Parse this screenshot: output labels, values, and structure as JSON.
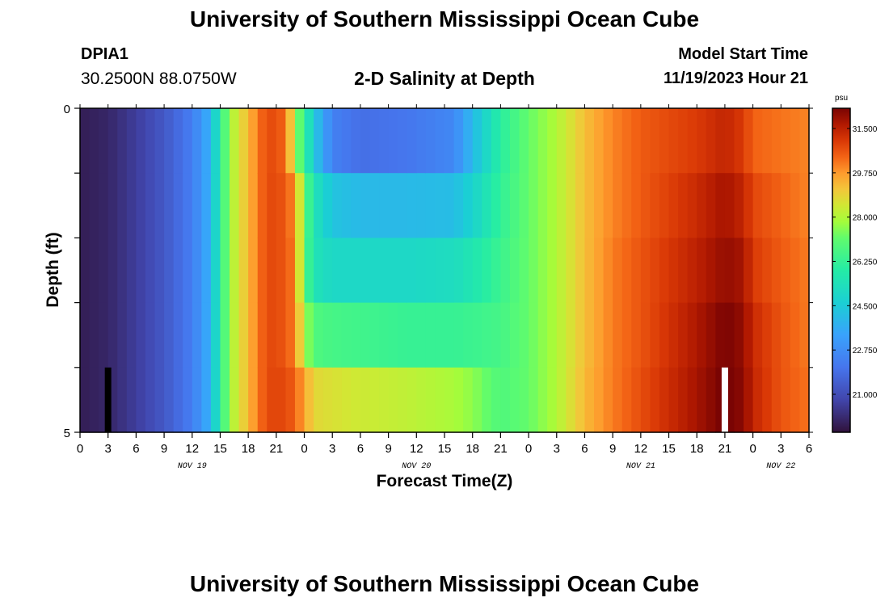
{
  "header": {
    "title": "University of Southern Mississippi Ocean Cube",
    "station": "DPIA1",
    "coords": "30.2500N  88.0750W",
    "subtitle": "2-D Salinity at Depth",
    "start_label": "Model Start Time",
    "start_value": "11/19/2023 Hour 21"
  },
  "footer": {
    "title": "University of Southern Mississippi Ocean Cube"
  },
  "chart_data": {
    "type": "heatmap",
    "xlabel": "Forecast Time(Z)",
    "ylabel": "Depth (ft)",
    "x_tick_labels": [
      "0",
      "3",
      "6",
      "9",
      "12",
      "15",
      "18",
      "21",
      "0",
      "3",
      "6",
      "9",
      "12",
      "15",
      "18",
      "21",
      "0",
      "3",
      "6",
      "9",
      "12",
      "15",
      "18",
      "21",
      "0",
      "3",
      "6"
    ],
    "date_labels": [
      {
        "text": "NOV 19",
        "hour": 12
      },
      {
        "text": "NOV 20",
        "hour": 36
      },
      {
        "text": "NOV 21",
        "hour": 60
      },
      {
        "text": "NOV 22",
        "hour": 75
      }
    ],
    "x_range_hours": [
      0,
      78
    ],
    "y_range_ft": [
      0,
      5
    ],
    "y_tick_labels": [
      "0",
      "5"
    ],
    "depth_layers": 5,
    "colorbar": {
      "unit": "psu",
      "range": [
        19.5,
        32.3
      ],
      "ticks": [
        "31.500",
        "29.750",
        "28.000",
        "26.250",
        "24.500",
        "22.750",
        "21.000"
      ],
      "tick_values": [
        31.5,
        29.75,
        28.0,
        26.25,
        24.5,
        22.75,
        21.0
      ]
    },
    "salinity_keypoints": [
      {
        "hour": 0,
        "layers": [
          19.8,
          19.8,
          19.8,
          19.8,
          19.8
        ]
      },
      {
        "hour": 3,
        "layers": [
          20.0,
          20.0,
          20.0,
          20.0,
          20.0
        ]
      },
      {
        "hour": 6,
        "layers": [
          20.6,
          20.6,
          20.6,
          20.6,
          20.6
        ]
      },
      {
        "hour": 9,
        "layers": [
          21.3,
          21.3,
          21.3,
          21.3,
          21.3
        ]
      },
      {
        "hour": 12,
        "layers": [
          22.3,
          22.3,
          22.3,
          22.3,
          22.3
        ]
      },
      {
        "hour": 14,
        "layers": [
          23.8,
          23.8,
          23.8,
          23.8,
          23.8
        ]
      },
      {
        "hour": 15,
        "layers": [
          26.0,
          26.0,
          26.0,
          26.0,
          26.0
        ]
      },
      {
        "hour": 16,
        "layers": [
          27.8,
          27.8,
          27.8,
          27.8,
          27.8
        ]
      },
      {
        "hour": 18,
        "layers": [
          29.3,
          29.3,
          29.3,
          29.3,
          29.3
        ]
      },
      {
        "hour": 20,
        "layers": [
          30.8,
          30.8,
          30.8,
          30.8,
          30.8
        ]
      },
      {
        "hour": 22,
        "layers": [
          30.4,
          30.6,
          30.6,
          30.6,
          30.8
        ]
      },
      {
        "hour": 23,
        "layers": [
          28.0,
          29.8,
          30.0,
          30.0,
          30.4
        ]
      },
      {
        "hour": 24,
        "layers": [
          26.2,
          27.2,
          27.0,
          28.0,
          29.6
        ]
      },
      {
        "hour": 25,
        "layers": [
          24.5,
          25.5,
          25.5,
          26.8,
          28.8
        ]
      },
      {
        "hour": 27,
        "layers": [
          22.4,
          24.3,
          25.0,
          26.6,
          28.6
        ]
      },
      {
        "hour": 30,
        "layers": [
          21.9,
          24.0,
          25.0,
          26.5,
          28.4
        ]
      },
      {
        "hour": 35,
        "layers": [
          22.1,
          24.0,
          25.0,
          26.3,
          28.2
        ]
      },
      {
        "hour": 40,
        "layers": [
          22.6,
          24.1,
          25.2,
          26.3,
          27.9
        ]
      },
      {
        "hour": 42,
        "layers": [
          24.0,
          24.8,
          25.6,
          26.4,
          27.6
        ]
      },
      {
        "hour": 45,
        "layers": [
          26.0,
          26.2,
          26.4,
          26.6,
          26.8
        ]
      },
      {
        "hour": 48,
        "layers": [
          27.2,
          27.2,
          27.2,
          27.2,
          27.2
        ]
      },
      {
        "hour": 51,
        "layers": [
          28.0,
          28.0,
          28.0,
          28.0,
          28.0
        ]
      },
      {
        "hour": 54,
        "layers": [
          29.2,
          29.2,
          29.2,
          29.2,
          29.3
        ]
      },
      {
        "hour": 57,
        "layers": [
          30.0,
          30.0,
          30.1,
          30.1,
          30.1
        ]
      },
      {
        "hour": 60,
        "layers": [
          30.5,
          30.5,
          30.6,
          30.6,
          30.7
        ]
      },
      {
        "hour": 66,
        "layers": [
          31.0,
          31.3,
          31.5,
          31.7,
          31.8
        ]
      },
      {
        "hour": 69,
        "layers": [
          31.4,
          31.8,
          32.0,
          32.3,
          32.4
        ]
      },
      {
        "hour": 71,
        "layers": [
          31.0,
          31.4,
          31.8,
          32.0,
          32.1
        ]
      },
      {
        "hour": 72,
        "layers": [
          30.4,
          30.8,
          31.0,
          31.3,
          31.4
        ]
      },
      {
        "hour": 75,
        "layers": [
          30.2,
          30.4,
          30.5,
          30.6,
          30.6
        ]
      },
      {
        "hour": 78,
        "layers": [
          30.0,
          30.0,
          30.1,
          30.1,
          30.2
        ]
      }
    ],
    "time_markers": [
      {
        "hour": 3,
        "color": "#000000"
      },
      {
        "hour": 69,
        "color": "#ffffff"
      }
    ]
  }
}
